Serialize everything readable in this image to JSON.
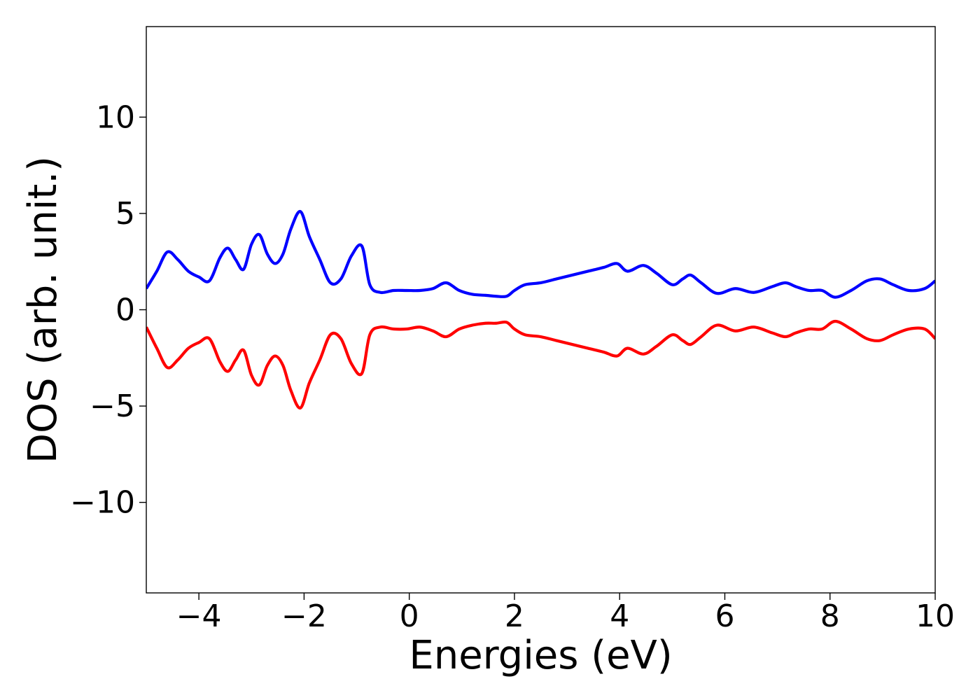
{
  "chart_data": {
    "type": "line",
    "title": "",
    "xlabel": "Energies (eV)",
    "ylabel": "DOS (arb. unit.)",
    "xlim": [
      -5,
      10
    ],
    "ylim": [
      -14.7,
      14.7
    ],
    "xticks": [
      -4,
      -2,
      0,
      2,
      4,
      6,
      8,
      10
    ],
    "xtick_labels": [
      "−4",
      "−2",
      "0",
      "2",
      "4",
      "6",
      "8",
      "10"
    ],
    "yticks": [
      -10,
      -5,
      0,
      5,
      10
    ],
    "ytick_labels": [
      "−10",
      "−5",
      "0",
      "5",
      "10"
    ],
    "grid": false,
    "legend": "none",
    "series": [
      {
        "color": "#0000ff",
        "x": [
          -5.0,
          -4.8,
          -4.6,
          -4.4,
          -4.2,
          -4.0,
          -3.8,
          -3.6,
          -3.45,
          -3.3,
          -3.15,
          -3.0,
          -2.85,
          -2.7,
          -2.55,
          -2.4,
          -2.25,
          -2.07,
          -1.9,
          -1.7,
          -1.5,
          -1.3,
          -1.1,
          -0.9,
          -0.75,
          -0.55,
          -0.3,
          -0.05,
          0.2,
          0.45,
          0.7,
          0.95,
          1.2,
          1.45,
          1.65,
          1.85,
          2.0,
          2.2,
          2.5,
          2.8,
          3.1,
          3.4,
          3.7,
          3.95,
          4.15,
          4.45,
          4.7,
          5.0,
          5.2,
          5.35,
          5.55,
          5.85,
          6.2,
          6.55,
          6.9,
          7.15,
          7.35,
          7.6,
          7.85,
          8.1,
          8.4,
          8.7,
          8.95,
          9.2,
          9.5,
          9.8,
          10.0
        ],
        "y": [
          1.1,
          2.0,
          3.0,
          2.6,
          2.0,
          1.7,
          1.5,
          2.7,
          3.2,
          2.6,
          2.1,
          3.4,
          3.9,
          2.9,
          2.4,
          2.9,
          4.2,
          5.1,
          3.8,
          2.6,
          1.4,
          1.6,
          2.8,
          3.3,
          1.3,
          0.9,
          1.0,
          1.0,
          1.0,
          1.1,
          1.4,
          1.0,
          0.8,
          0.75,
          0.7,
          0.7,
          1.0,
          1.3,
          1.4,
          1.6,
          1.8,
          2.0,
          2.2,
          2.4,
          2.0,
          2.3,
          1.9,
          1.3,
          1.6,
          1.8,
          1.4,
          0.85,
          1.1,
          0.9,
          1.2,
          1.4,
          1.2,
          1.0,
          1.0,
          0.65,
          1.0,
          1.5,
          1.6,
          1.3,
          1.0,
          1.1,
          1.5
        ]
      },
      {
        "color": "#ff0000",
        "x": [
          -5.0,
          -4.8,
          -4.6,
          -4.4,
          -4.2,
          -4.0,
          -3.8,
          -3.6,
          -3.45,
          -3.3,
          -3.15,
          -3.0,
          -2.85,
          -2.7,
          -2.55,
          -2.4,
          -2.25,
          -2.07,
          -1.9,
          -1.7,
          -1.5,
          -1.3,
          -1.1,
          -0.9,
          -0.75,
          -0.55,
          -0.3,
          -0.05,
          0.2,
          0.45,
          0.7,
          0.95,
          1.2,
          1.45,
          1.65,
          1.85,
          2.0,
          2.2,
          2.5,
          2.8,
          3.1,
          3.4,
          3.7,
          3.95,
          4.15,
          4.45,
          4.7,
          5.0,
          5.2,
          5.35,
          5.55,
          5.85,
          6.2,
          6.55,
          6.9,
          7.15,
          7.35,
          7.6,
          7.85,
          8.1,
          8.4,
          8.7,
          8.95,
          9.2,
          9.5,
          9.8,
          10.0
        ],
        "y": [
          -0.9,
          -2.0,
          -3.0,
          -2.6,
          -2.0,
          -1.7,
          -1.5,
          -2.7,
          -3.2,
          -2.6,
          -2.1,
          -3.4,
          -3.9,
          -2.9,
          -2.4,
          -2.9,
          -4.2,
          -5.1,
          -3.8,
          -2.6,
          -1.3,
          -1.5,
          -2.8,
          -3.3,
          -1.3,
          -0.9,
          -1.0,
          -1.0,
          -0.9,
          -1.1,
          -1.4,
          -1.0,
          -0.8,
          -0.7,
          -0.7,
          -0.65,
          -1.0,
          -1.3,
          -1.4,
          -1.6,
          -1.8,
          -2.0,
          -2.2,
          -2.4,
          -2.0,
          -2.3,
          -1.9,
          -1.3,
          -1.6,
          -1.8,
          -1.4,
          -0.8,
          -1.1,
          -0.9,
          -1.2,
          -1.4,
          -1.2,
          -1.0,
          -1.0,
          -0.6,
          -1.0,
          -1.5,
          -1.6,
          -1.3,
          -1.0,
          -1.0,
          -1.5
        ]
      }
    ]
  }
}
